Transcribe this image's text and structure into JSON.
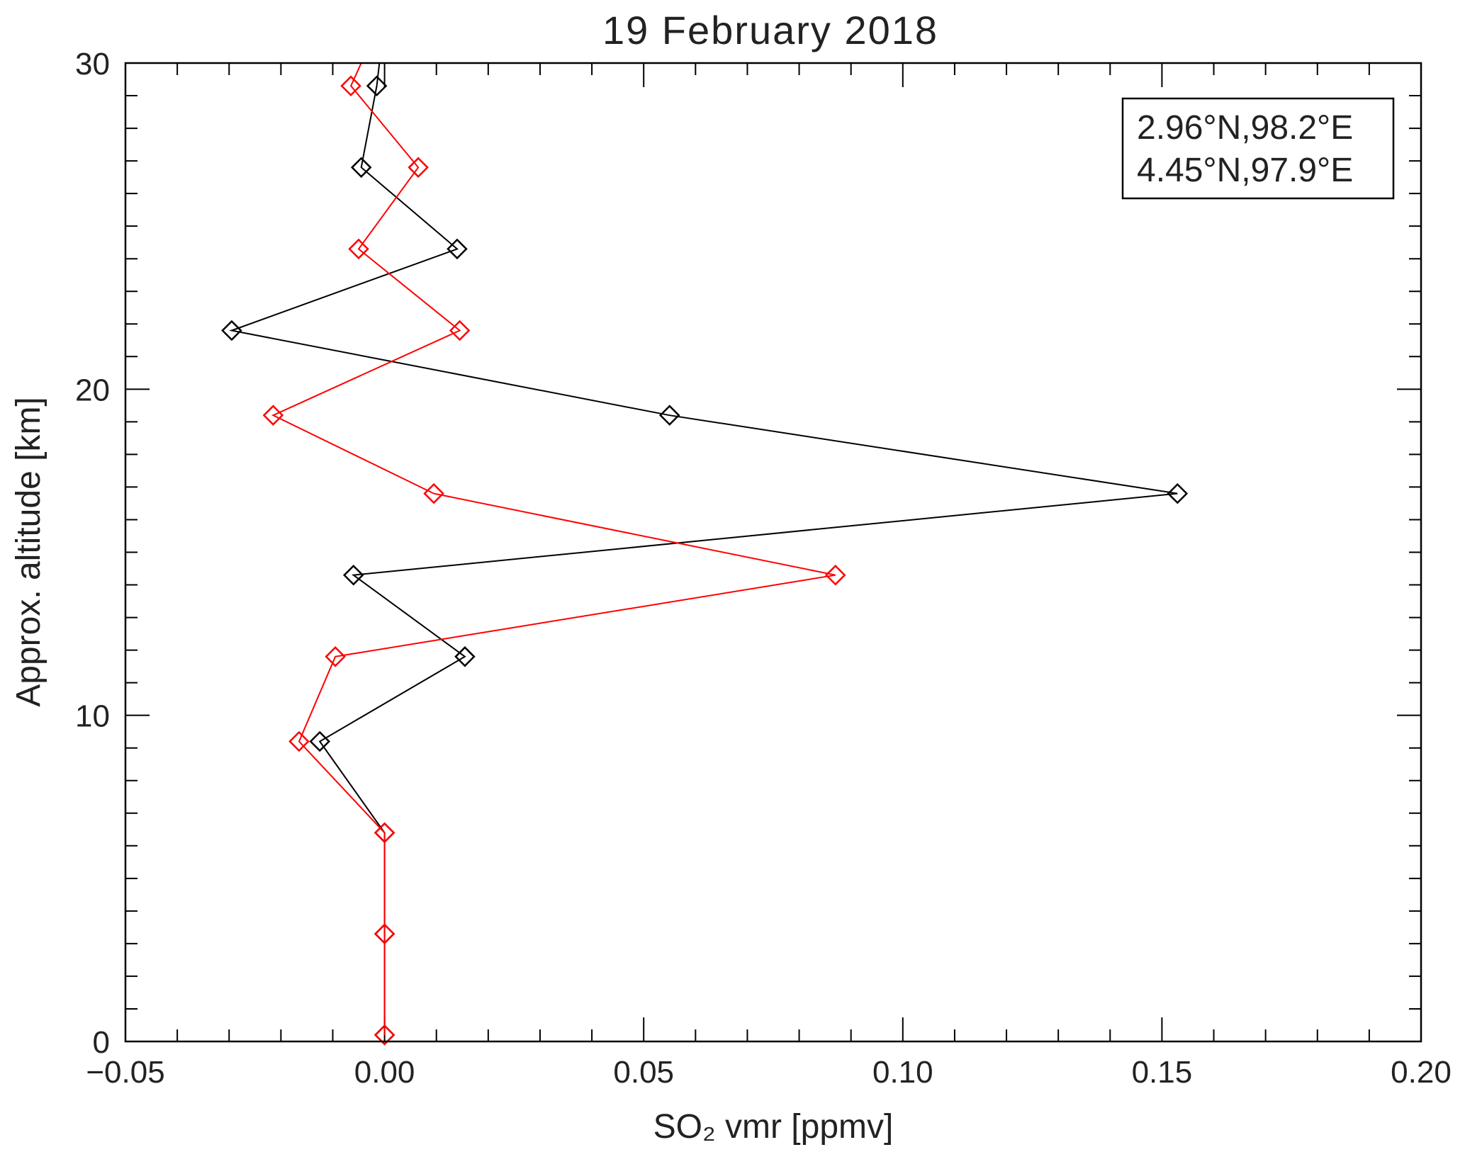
{
  "chart_data": {
    "type": "line",
    "title": "19 February 2018",
    "xlabel": "SO₂ vmr [ppmv]",
    "ylabel": "Approx. altitude [km]",
    "xlim": [
      -0.05,
      0.2
    ],
    "ylim": [
      0,
      30
    ],
    "x_ticks": [
      -0.05,
      0.0,
      0.05,
      0.1,
      0.15,
      0.2
    ],
    "x_tick_labels": [
      "−0.05",
      "0.00",
      "0.05",
      "0.10",
      "0.15",
      "0.20"
    ],
    "y_ticks": [
      0,
      10,
      20,
      30
    ],
    "y_tick_labels": [
      "0",
      "10",
      "20",
      "30"
    ],
    "grid": false,
    "legend_position": "top-right",
    "marker": "diamond",
    "series": [
      {
        "name": "2.96°N,98.2°E",
        "color": "#000000",
        "points": [
          {
            "x": 0.0,
            "y": 0.2
          },
          {
            "x": 0.0,
            "y": 3.3
          },
          {
            "x": 0.0,
            "y": 6.4
          },
          {
            "x": -0.0125,
            "y": 9.2
          },
          {
            "x": 0.0155,
            "y": 11.8
          },
          {
            "x": -0.006,
            "y": 14.3
          },
          {
            "x": 0.153,
            "y": 16.8
          },
          {
            "x": 0.055,
            "y": 19.2
          },
          {
            "x": -0.0295,
            "y": 21.8
          },
          {
            "x": 0.014,
            "y": 24.3
          },
          {
            "x": -0.0045,
            "y": 26.8
          },
          {
            "x": -0.0015,
            "y": 29.3
          },
          {
            "x": -0.001,
            "y": 30.0
          }
        ]
      },
      {
        "name": "4.45°N,97.9°E",
        "color": "#ff0000",
        "points": [
          {
            "x": 0.0,
            "y": 0.2
          },
          {
            "x": 0.0,
            "y": 3.3
          },
          {
            "x": 0.0,
            "y": 6.4
          },
          {
            "x": -0.0165,
            "y": 9.2
          },
          {
            "x": -0.0095,
            "y": 11.8
          },
          {
            "x": 0.087,
            "y": 14.3
          },
          {
            "x": 0.0095,
            "y": 16.8
          },
          {
            "x": -0.0215,
            "y": 19.2
          },
          {
            "x": 0.0145,
            "y": 21.8
          },
          {
            "x": -0.005,
            "y": 24.3
          },
          {
            "x": 0.0065,
            "y": 26.8
          },
          {
            "x": -0.0065,
            "y": 29.3
          },
          {
            "x": -0.0045,
            "y": 30.0
          }
        ]
      }
    ]
  }
}
